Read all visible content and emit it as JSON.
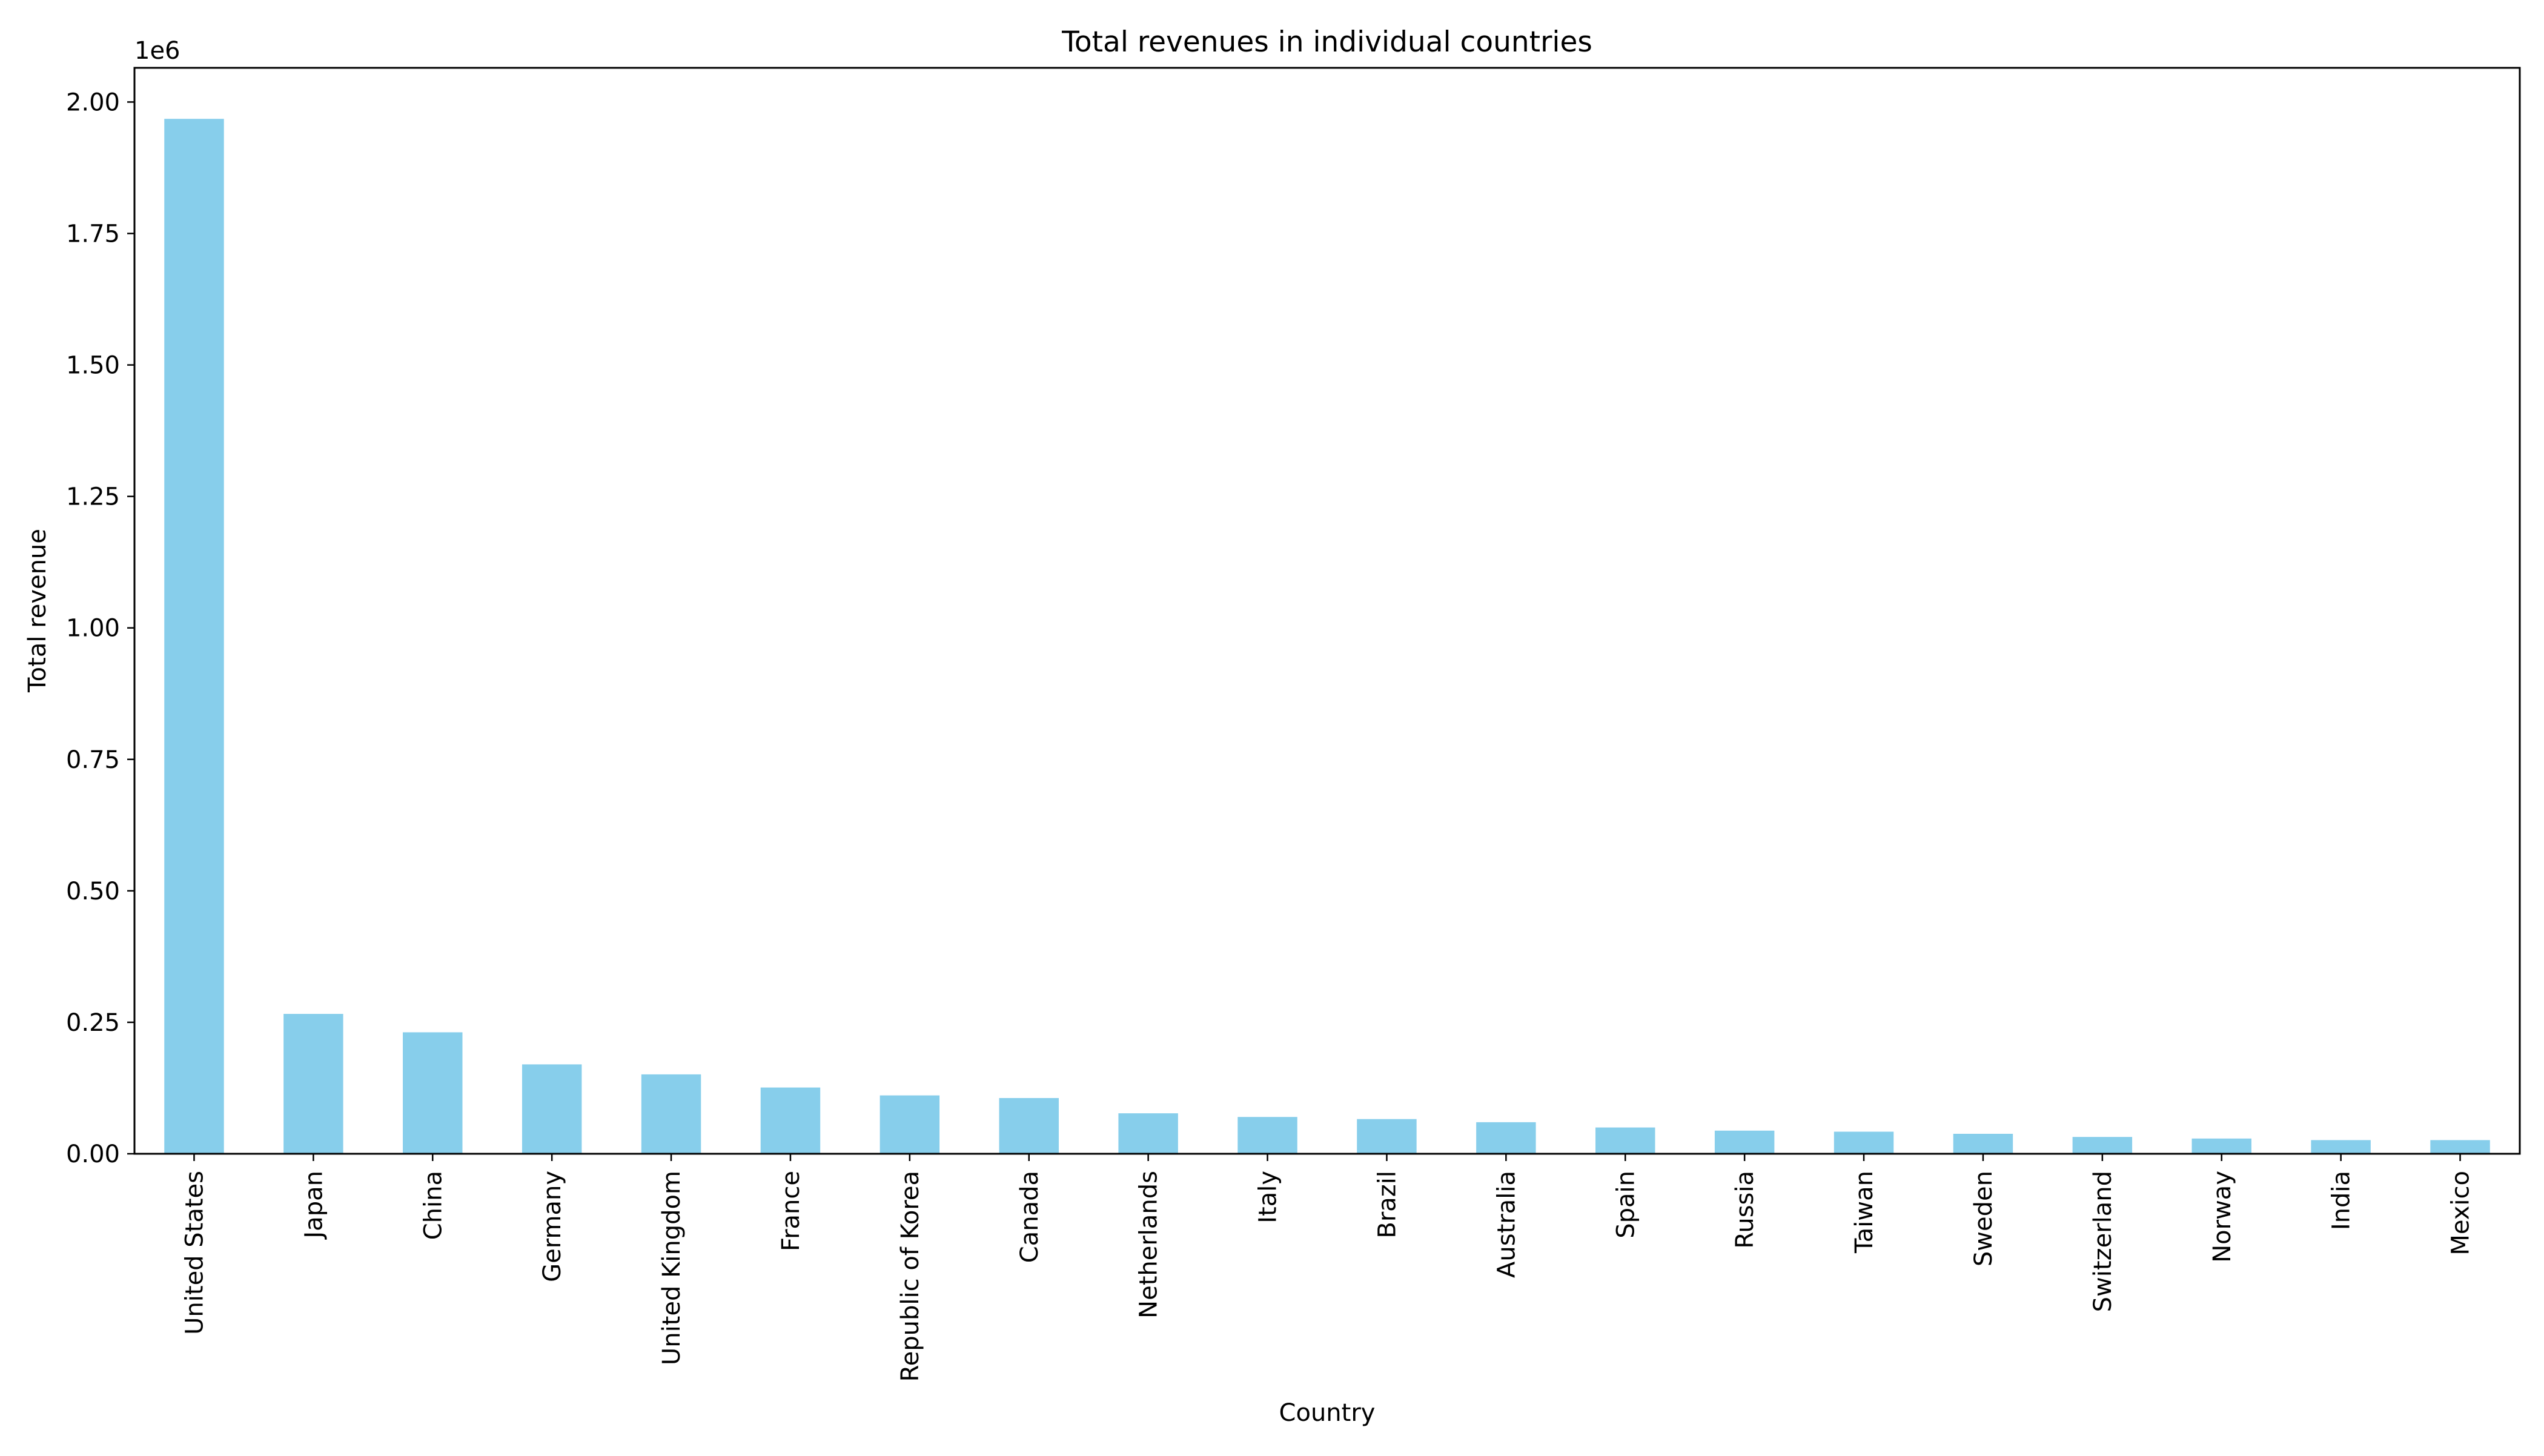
{
  "chart_data": {
    "type": "bar",
    "title": "Total revenues in individual countries",
    "xlabel": "Country",
    "ylabel": "Total revenue",
    "offset_label": "1e6",
    "categories": [
      "United States",
      "Japan",
      "China",
      "Germany",
      "United Kingdom",
      "France",
      "Republic of Korea",
      "Canada",
      "Netherlands",
      "Italy",
      "Brazil",
      "Australia",
      "Spain",
      "Russia",
      "Taiwan",
      "Sweden",
      "Switzerland",
      "Norway",
      "India",
      "Mexico"
    ],
    "values": [
      1968000,
      266000,
      231000,
      170000,
      151000,
      126000,
      111000,
      106000,
      77000,
      70000,
      66000,
      60000,
      50000,
      44000,
      42000,
      38000,
      32000,
      29000,
      26000,
      26000
    ],
    "ylim": [
      0,
      2065000
    ],
    "yticks": [
      0,
      250000,
      500000,
      750000,
      1000000,
      1250000,
      1500000,
      1750000,
      2000000
    ],
    "ytick_labels": [
      "0.00",
      "0.25",
      "0.50",
      "0.75",
      "1.00",
      "1.25",
      "1.50",
      "1.75",
      "2.00"
    ],
    "grid": false,
    "colors": {
      "bar": "#87CEEB",
      "axis": "#000000"
    }
  }
}
